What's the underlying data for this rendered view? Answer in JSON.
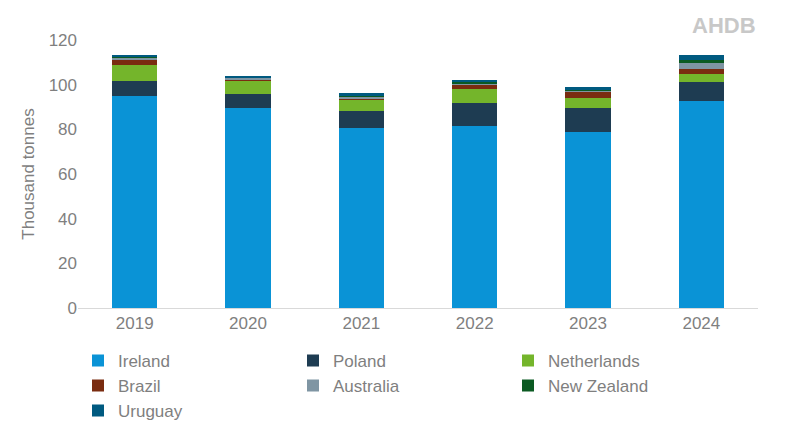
{
  "chart_data": {
    "type": "bar",
    "stacked": true,
    "y_label": "Thousand tonnes",
    "annotations": [
      "AHDB"
    ],
    "categories": [
      "2019",
      "2020",
      "2021",
      "2022",
      "2023",
      "2024"
    ],
    "series": [
      {
        "name": "Ireland",
        "color": "#0a93d6",
        "values": [
          95,
          89.5,
          80.5,
          81.5,
          79,
          92.5
        ]
      },
      {
        "name": "Poland",
        "color": "#1e3c52",
        "values": [
          6.5,
          6.5,
          7.5,
          10.5,
          10.5,
          8.5
        ]
      },
      {
        "name": "Netherlands",
        "color": "#74b52b",
        "values": [
          7.5,
          6,
          5,
          6,
          4.5,
          4
        ]
      },
      {
        "name": "Brazil",
        "color": "#7a2c10",
        "values": [
          2,
          0.5,
          1,
          2,
          3,
          2
        ]
      },
      {
        "name": "Australia",
        "color": "#7f95a3",
        "values": [
          1,
          0.5,
          0.5,
          0.7,
          0.5,
          2.5
        ]
      },
      {
        "name": "New Zealand",
        "color": "#0b5a22",
        "values": [
          0.3,
          0.2,
          0.3,
          0.3,
          0.3,
          1.5
        ]
      },
      {
        "name": "Uruguay",
        "color": "#005a80",
        "values": [
          1,
          0.8,
          1.5,
          1.3,
          1.2,
          2.5
        ]
      }
    ],
    "ylim": [
      0,
      120
    ],
    "yticks": [
      0,
      20,
      40,
      60,
      80,
      100,
      120
    ],
    "grid": false,
    "legend": "bottom"
  }
}
